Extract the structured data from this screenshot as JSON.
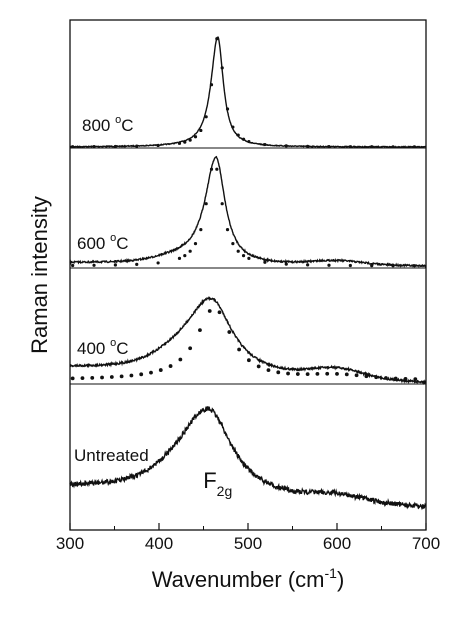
{
  "chart_data": {
    "type": "line",
    "xlabel": {
      "main": "Wavenumber (cm",
      "sup": "-1",
      "tail": ")"
    },
    "ylabel": "Raman intensity",
    "xlim": [
      300,
      700
    ],
    "xticks": [
      "300",
      "400",
      "500",
      "600",
      "700"
    ],
    "yticks": "none",
    "grid": false,
    "series": [
      {
        "name": "800 °C",
        "label": {
          "pre": "800 ",
          "sup": "o",
          "post": "C"
        },
        "peak_x": 466,
        "peak_fwhm": 16,
        "has_dotted_fit": true
      },
      {
        "name": "600 °C",
        "label": {
          "pre": "600 ",
          "sup": "o",
          "post": "C"
        },
        "peak_x": 464,
        "peak_fwhm": 26,
        "has_dotted_fit": true
      },
      {
        "name": "400 °C",
        "label": {
          "pre": "400 ",
          "sup": "o",
          "post": "C"
        },
        "peak_x": 459,
        "peak_fwhm": 60,
        "has_dotted_fit": true
      },
      {
        "name": "Untreated",
        "label": {
          "pre": "Untreated",
          "sup": "",
          "post": ""
        },
        "peak_x": 456,
        "peak_fwhm": 68,
        "has_dotted_fit": false
      }
    ],
    "annotation": {
      "main": "F",
      "sub": "2g",
      "x": 466
    },
    "separators": 3
  }
}
